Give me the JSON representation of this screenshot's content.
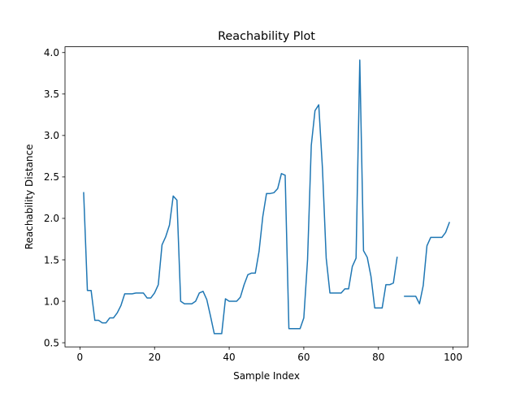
{
  "chart_data": {
    "type": "line",
    "title": "Reachability Plot",
    "xlabel": "Sample Index",
    "ylabel": "Reachability Distance",
    "xlim": [
      -4,
      104
    ],
    "ylim": [
      0.45,
      4.07
    ],
    "xticks": [
      0,
      20,
      40,
      60,
      80,
      100
    ],
    "yticks": [
      0.5,
      1.0,
      1.5,
      2.0,
      2.5,
      3.0,
      3.5,
      4.0
    ],
    "xtick_labels": [
      "0",
      "20",
      "40",
      "60",
      "80",
      "100"
    ],
    "ytick_labels": [
      "0.5",
      "1.0",
      "1.5",
      "2.0",
      "2.5",
      "3.0",
      "3.5",
      "4.0"
    ],
    "grid": false,
    "series": [
      {
        "color": "#1f77b4",
        "x": [
          1,
          2,
          3,
          4,
          5,
          6,
          7,
          8,
          9,
          10,
          11,
          12,
          13,
          14,
          15,
          16,
          17,
          18,
          19,
          20,
          21,
          22,
          23,
          24,
          25,
          26,
          27,
          28,
          29,
          30,
          31,
          32,
          33,
          34,
          35,
          36,
          37,
          38,
          39,
          40,
          41,
          42,
          43,
          44,
          45,
          46,
          47,
          48,
          49,
          50,
          51,
          52,
          53,
          54,
          55,
          56,
          57,
          58,
          59,
          60,
          61,
          62,
          63,
          64,
          65,
          66,
          67,
          68,
          69,
          70,
          71,
          72,
          73,
          74,
          75,
          76,
          77,
          78,
          79,
          80,
          81,
          82,
          83,
          84,
          85,
          86,
          87,
          88,
          89,
          90,
          91,
          92,
          93,
          94,
          95,
          96,
          97,
          98,
          99
        ],
        "y": [
          2.31,
          1.13,
          1.13,
          0.77,
          0.77,
          0.74,
          0.74,
          0.8,
          0.8,
          0.86,
          0.95,
          1.09,
          1.09,
          1.09,
          1.1,
          1.1,
          1.1,
          1.04,
          1.04,
          1.1,
          1.2,
          1.68,
          1.78,
          1.92,
          2.27,
          2.22,
          1.0,
          0.97,
          0.97,
          0.97,
          1.0,
          1.1,
          1.12,
          1.02,
          0.82,
          0.61,
          0.61,
          0.61,
          1.03,
          1.0,
          1.0,
          1.0,
          1.05,
          1.2,
          1.32,
          1.34,
          1.34,
          1.6,
          2.02,
          2.3,
          2.3,
          2.31,
          2.36,
          2.54,
          2.52,
          0.67,
          0.67,
          0.67,
          0.67,
          0.8,
          1.5,
          2.88,
          3.3,
          3.37,
          2.6,
          1.52,
          1.1,
          1.1,
          1.1,
          1.1,
          1.15,
          1.15,
          1.42,
          1.52,
          3.91,
          1.61,
          1.53,
          1.3,
          0.92,
          0.92,
          0.92,
          1.2,
          1.2,
          1.22,
          1.53,
          null,
          1.06,
          1.06,
          1.06,
          1.06,
          0.97,
          1.19,
          1.67,
          1.77,
          1.77,
          1.77,
          1.77,
          1.83,
          1.95
        ]
      }
    ]
  }
}
